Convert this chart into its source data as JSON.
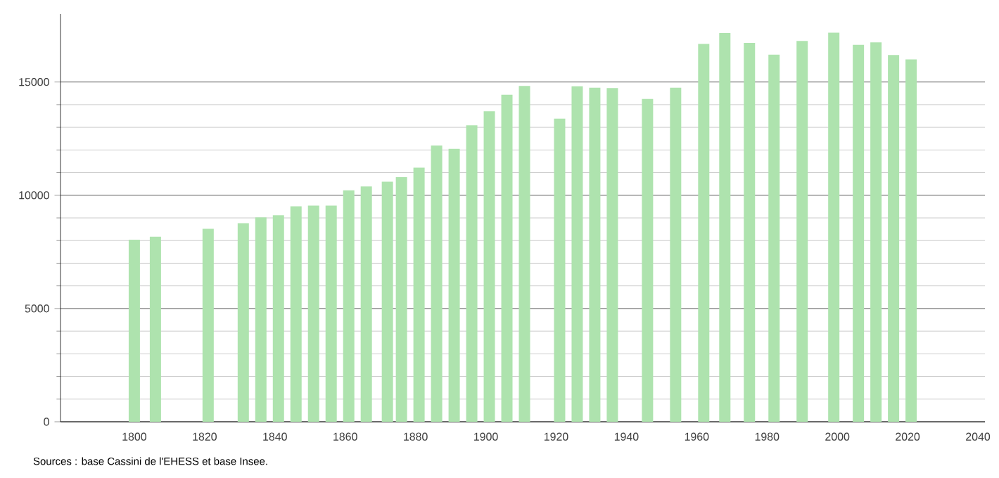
{
  "chart_data": {
    "type": "bar",
    "x": [
      1800,
      1806,
      1821,
      1831,
      1836,
      1841,
      1846,
      1851,
      1856,
      1861,
      1866,
      1872,
      1876,
      1881,
      1886,
      1891,
      1896,
      1901,
      1906,
      1911,
      1921,
      1926,
      1931,
      1936,
      1946,
      1954,
      1962,
      1968,
      1975,
      1982,
      1990,
      1999,
      2006,
      2011,
      2016,
      2021
    ],
    "values": [
      8040,
      8170,
      8520,
      8770,
      9020,
      9120,
      9510,
      9540,
      9540,
      10220,
      10390,
      10600,
      10800,
      11220,
      12200,
      12050,
      13090,
      13710,
      14440,
      14830,
      13380,
      14810,
      14750,
      14730,
      14250,
      14750,
      16680,
      17160,
      16730,
      16210,
      16810,
      17180,
      16640,
      16750,
      16190,
      16000
    ],
    "color": "#aee3ae",
    "xlim": [
      1779,
      2042
    ],
    "ylim": [
      0,
      18000
    ],
    "xticks": [
      1800,
      1820,
      1840,
      1860,
      1880,
      1900,
      1920,
      1940,
      1960,
      1980,
      2000,
      2020,
      2040
    ],
    "yticks": [
      0,
      5000,
      10000,
      15000
    ],
    "grid": "y",
    "annotations": [
      "Sources : base Cassini de l'EHESS et base Insee."
    ]
  }
}
